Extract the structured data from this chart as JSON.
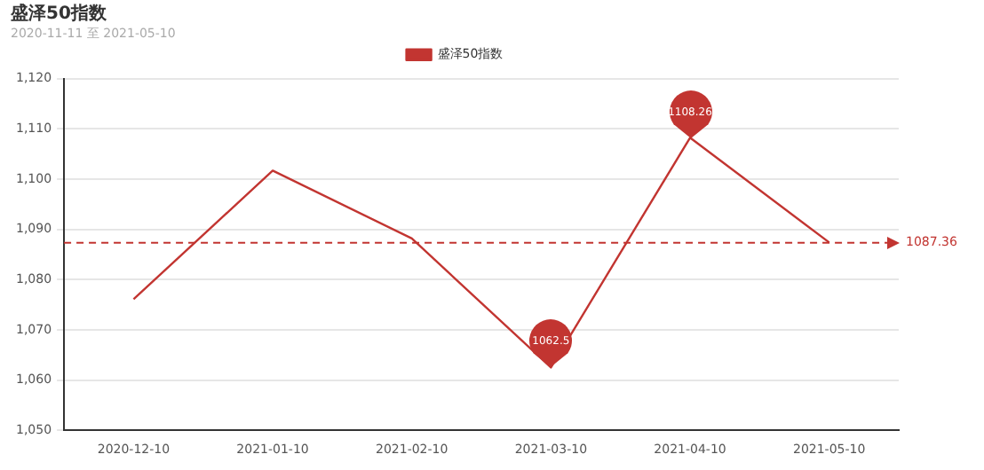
{
  "chart_data": {
    "type": "line",
    "title": "盛泽50指数",
    "subtitle": "2020-11-11 至 2021-05-10",
    "categories": [
      "2020-12-10",
      "2021-01-10",
      "2021-02-10",
      "2021-03-10",
      "2021-04-10",
      "2021-05-10"
    ],
    "series": [
      {
        "name": "盛泽50指数",
        "color": "#c23531",
        "values": [
          1076.1,
          1101.7,
          1088.2,
          1062.5,
          1108.26,
          1087.4
        ]
      }
    ],
    "ylim": [
      1050,
      1120
    ],
    "yticks": [
      {
        "value": 1050,
        "label": "1,050"
      },
      {
        "value": 1060,
        "label": "1,060"
      },
      {
        "value": 1070,
        "label": "1,070"
      },
      {
        "value": 1080,
        "label": "1,080"
      },
      {
        "value": 1090,
        "label": "1,090"
      },
      {
        "value": 1100,
        "label": "1,100"
      },
      {
        "value": 1110,
        "label": "1,110"
      },
      {
        "value": 1120,
        "label": "1,120"
      }
    ],
    "grid": "y",
    "legend": "top",
    "marker": "none",
    "line_style": "solid",
    "ref_lines": [
      {
        "axis": "y",
        "value": 1087.36,
        "label": "1087.36",
        "color": "#c23531",
        "line_style": "dashed"
      }
    ],
    "annotations": [
      {
        "text": "1108.26",
        "x": "2021-04-10",
        "y": 1108.26
      },
      {
        "text": "1062.5",
        "x": "2021-03-10",
        "y": 1062.5
      }
    ]
  }
}
